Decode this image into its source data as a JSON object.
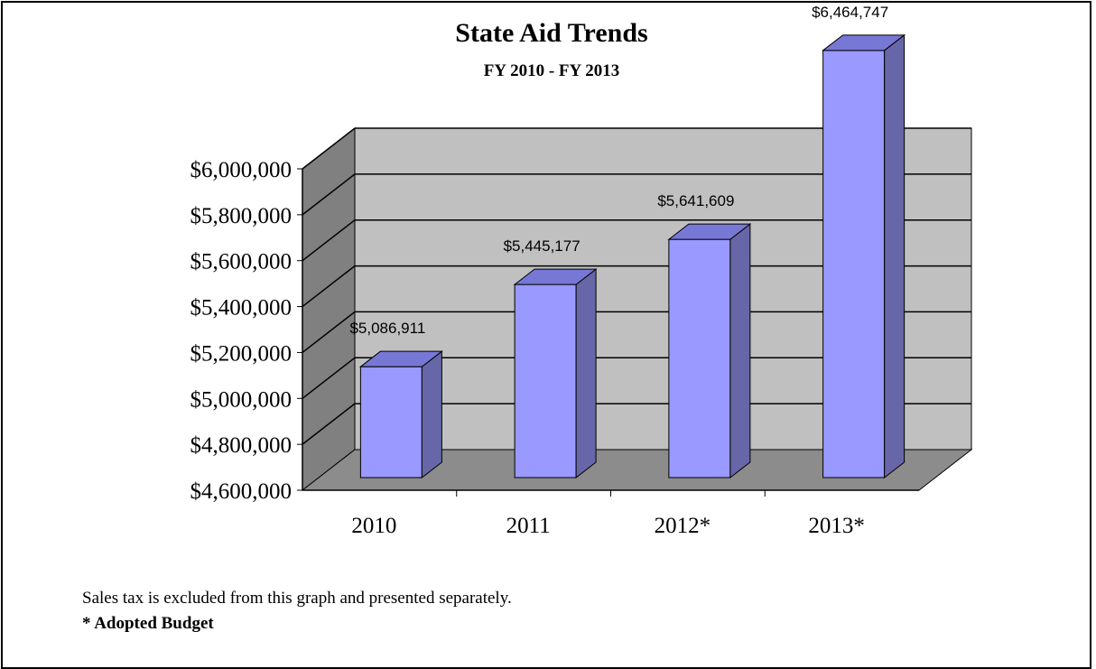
{
  "chart_data": {
    "type": "bar",
    "title": "State Aid Trends",
    "subtitle": "FY 2010 - FY 2013",
    "categories": [
      "2010",
      "2011",
      "2012*",
      "2013*"
    ],
    "values": [
      5086911,
      5445177,
      5641609,
      6464747
    ],
    "value_labels": [
      "$5,086,911",
      "$5,445,177",
      "$5,641,609",
      "$6,464,747"
    ],
    "ylim": [
      4600000,
      6000000
    ],
    "ytick_step": 200000,
    "ytick_labels": [
      "$4,600,000",
      "$4,800,000",
      "$5,000,000",
      "$5,200,000",
      "$5,400,000",
      "$5,600,000",
      "$5,800,000",
      "$6,000,000"
    ],
    "grid": true,
    "legend": "none",
    "colors": {
      "bar_front": "#9999ff",
      "bar_side": "#6666a8",
      "bar_top": "#7777d6",
      "back_wall": "#c0c0c0",
      "side_wall": "#808080",
      "floor": "#8c8c8c"
    }
  },
  "notes": {
    "line1": "Sales tax is excluded from this graph and presented separately.",
    "line2": "* Adopted Budget"
  }
}
